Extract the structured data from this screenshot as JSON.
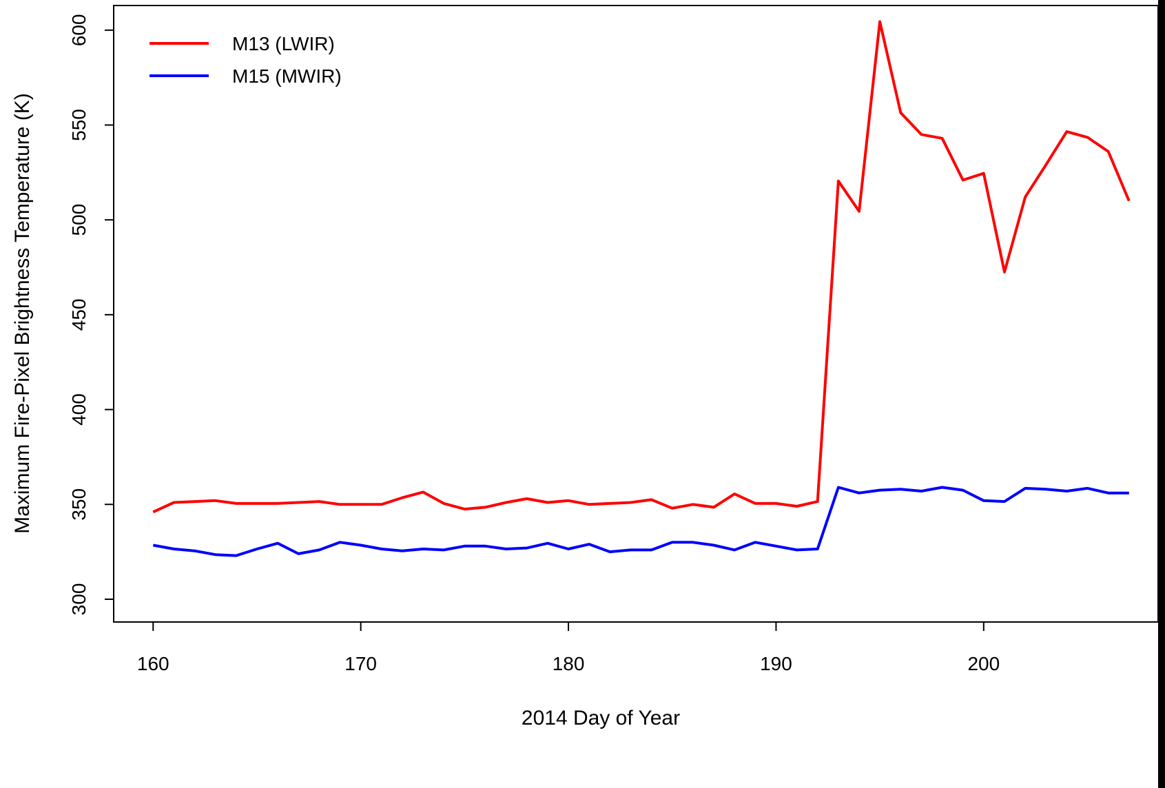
{
  "chart_data": {
    "type": "line",
    "xlabel": "2014 Day of Year",
    "ylabel": "Maximum Fire-Pixel Brightness Temperature (K)",
    "xlim": [
      158.1,
      208.4
    ],
    "ylim": [
      288,
      613
    ],
    "xticks": [
      160,
      170,
      180,
      190,
      200
    ],
    "yticks": [
      300,
      350,
      400,
      450,
      500,
      550,
      600
    ],
    "grid": false,
    "legend_position": "top-left",
    "background": "#ffffff",
    "outer_background": "#000000",
    "x": [
      160,
      161,
      162,
      163,
      164,
      165,
      166,
      167,
      168,
      169,
      170,
      171,
      172,
      173,
      174,
      175,
      176,
      177,
      178,
      179,
      180,
      181,
      182,
      183,
      184,
      185,
      186,
      187,
      188,
      189,
      190,
      191,
      192,
      193,
      194,
      195,
      196,
      197,
      198,
      199,
      200,
      201,
      202,
      203,
      204,
      205,
      206,
      207
    ],
    "series": [
      {
        "name": "M13 (LWIR)",
        "color": "#ff0000",
        "values": [
          346,
          351,
          351.5,
          352,
          350.5,
          350.5,
          350.5,
          351,
          351.5,
          350,
          350,
          350,
          353.5,
          356.5,
          350.5,
          347.5,
          348.5,
          351,
          353,
          351,
          352,
          350,
          350.5,
          351,
          352.5,
          348,
          350,
          348.5,
          355.5,
          350.5,
          350.5,
          349,
          351.5,
          520.5,
          504.5,
          604.5,
          556.5,
          545,
          543,
          521,
          524.5,
          472.5,
          512,
          529,
          546.5,
          543.5,
          536,
          510
        ]
      },
      {
        "name": "M15 (MWIR)",
        "color": "#0000ff",
        "values": [
          328.5,
          326.5,
          325.5,
          323.5,
          323,
          326.5,
          329.5,
          324,
          326,
          330,
          328.5,
          326.5,
          325.5,
          326.5,
          326,
          328,
          328,
          326.5,
          327,
          329.5,
          326.5,
          329,
          325,
          326,
          326,
          330,
          330,
          328.5,
          326,
          330,
          328,
          326,
          326.5,
          359,
          356,
          357.5,
          358,
          357,
          359,
          357.5,
          352,
          351.5,
          358.5,
          358,
          357,
          358.5,
          356,
          356
        ]
      }
    ]
  }
}
